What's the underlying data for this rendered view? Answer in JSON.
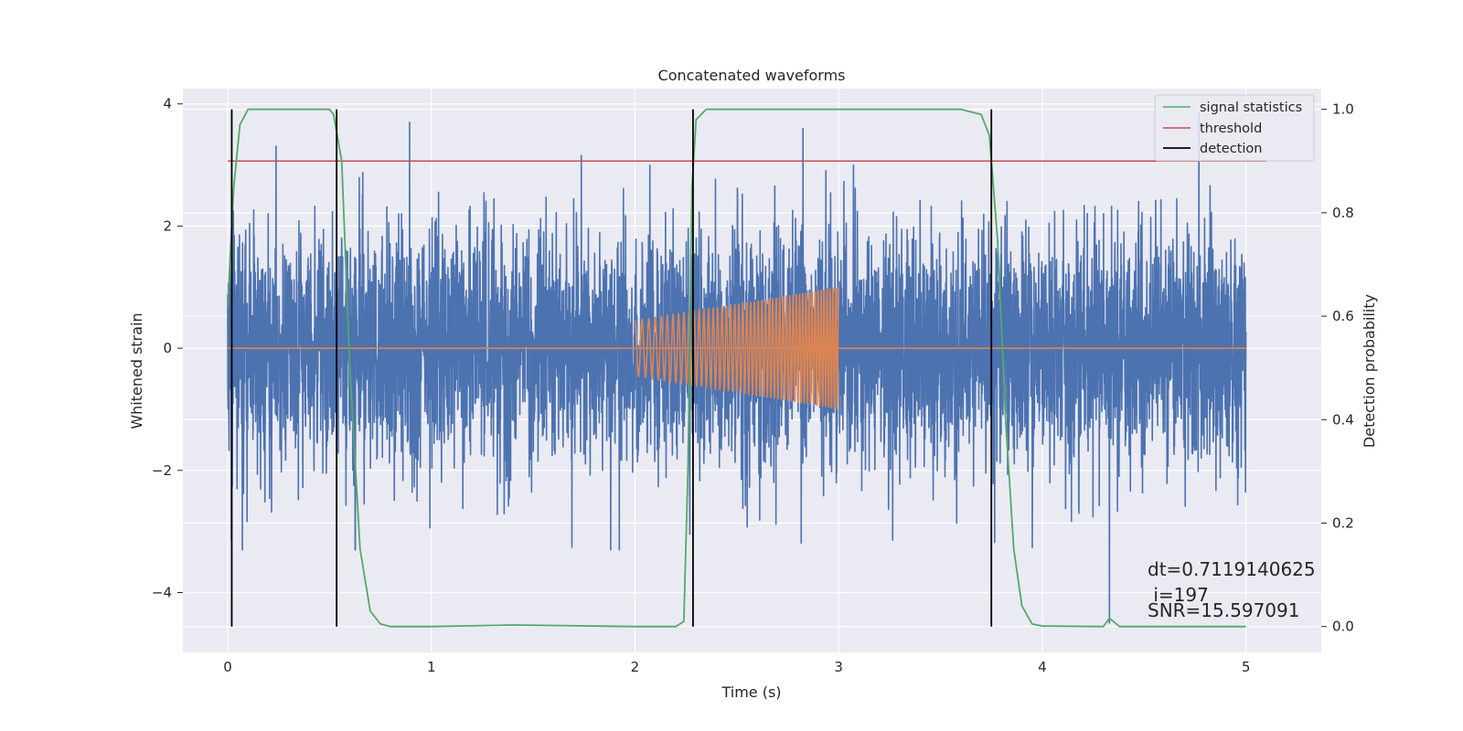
{
  "chart_data": {
    "type": "line",
    "title": "Concatenated waveforms",
    "xlabel": "Time (s)",
    "ylabel_left": "Whitened strain",
    "ylabel_right": "Detection probability",
    "xlim": [
      -0.22,
      5.37
    ],
    "ylim_left": [
      -4.98,
      4.25
    ],
    "ylim_right": [
      -0.05,
      1.04
    ],
    "xticks": [
      0,
      1,
      2,
      3,
      4,
      5
    ],
    "yticks_left": [
      -4,
      -2,
      0,
      2,
      4
    ],
    "yticks_right": [
      0.0,
      0.2,
      0.4,
      0.6,
      0.8,
      1.0
    ],
    "grid": true,
    "legend_position": "top-right",
    "colors": {
      "background": "#eaeaf2",
      "grid": "#ffffff",
      "strain": "#4c72b0",
      "template": "#dd8452",
      "statistics": "#55a868",
      "threshold": "#c44e52",
      "detection": "#000000"
    },
    "series": [
      {
        "name": "",
        "axis": "left",
        "color": "#4c72b0",
        "kind": "noise",
        "x_range": [
          0,
          5
        ],
        "typical_amplitude": 1.3,
        "peak_range": [
          -3.3,
          3.85
        ],
        "outliers": [
          {
            "x": 4.33,
            "y": -4.5
          }
        ]
      },
      {
        "name": "",
        "axis": "left",
        "color": "#dd8452",
        "kind": "chirp",
        "x_range": [
          2.0,
          3.0
        ],
        "amplitude_start": 0.45,
        "amplitude_end": 1.0,
        "baseline": 0
      },
      {
        "name": "signal statistics",
        "axis": "right",
        "color": "#55a868",
        "x": [
          0.0,
          0.03,
          0.06,
          0.1,
          0.5,
          0.52,
          0.56,
          0.6,
          0.65,
          0.7,
          0.75,
          0.8,
          1.0,
          1.4,
          2.0,
          2.2,
          2.24,
          2.26,
          2.28,
          2.3,
          2.35,
          2.5,
          3.6,
          3.7,
          3.74,
          3.78,
          3.82,
          3.86,
          3.9,
          3.95,
          4.0,
          4.3,
          4.33,
          4.38,
          4.5,
          5.0
        ],
        "y": [
          0.62,
          0.85,
          0.97,
          1.0,
          1.0,
          0.99,
          0.9,
          0.5,
          0.15,
          0.03,
          0.005,
          0.0,
          0.0,
          0.003,
          0.0,
          0.0,
          0.01,
          0.3,
          0.85,
          0.98,
          1.0,
          1.0,
          1.0,
          0.99,
          0.95,
          0.75,
          0.4,
          0.15,
          0.04,
          0.005,
          0.001,
          0.0,
          0.016,
          0.0,
          0.0,
          0.0
        ]
      },
      {
        "name": "threshold",
        "axis": "right",
        "color": "#c44e52",
        "x": [
          0.0,
          5.1
        ],
        "y": [
          0.9,
          0.9
        ]
      },
      {
        "name": "detection",
        "axis": "right",
        "color": "#000000",
        "kind": "vlines",
        "x": [
          0.02,
          0.535,
          2.285,
          3.75
        ],
        "y_range": [
          0.0,
          1.0
        ]
      }
    ],
    "annotations": [
      {
        "text": "dt=0.7119140625",
        "x": 4.5,
        "y_axis_right": 0.1
      },
      {
        "text": " i=197",
        "x": 4.5,
        "y_axis_right": 0.06
      },
      {
        "text": "SNR=15.597091",
        "x": 4.5,
        "y_axis_right": 0.025
      }
    ]
  }
}
